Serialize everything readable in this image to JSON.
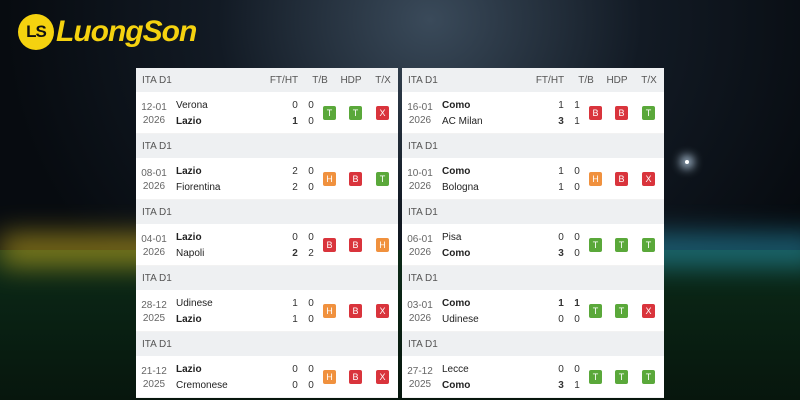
{
  "logo": {
    "text": "LuongSon",
    "badge": "LS"
  },
  "columns": {
    "score": "FT/HT",
    "tb": "T/B",
    "hdp": "HDP",
    "tx": "T/X"
  },
  "colors": {
    "T": "#5aa83a",
    "B": "#d9343c",
    "H": "#f0913e",
    "X": "#d9343c"
  },
  "left": [
    {
      "league": "ITA D1",
      "date1": "12-01",
      "date2": "2026",
      "home": "Verona",
      "away": "Lazio",
      "bold": "away",
      "hft": "0",
      "hht": "0",
      "aft": "1",
      "aht": "0",
      "boldScore": "away",
      "tb": "T",
      "hdp": "T",
      "tx": "X"
    },
    {
      "league": "ITA D1",
      "date1": "08-01",
      "date2": "2026",
      "home": "Lazio",
      "away": "Fiorentina",
      "bold": "home",
      "hft": "2",
      "hht": "0",
      "aft": "2",
      "aht": "0",
      "boldScore": "",
      "tb": "H",
      "hdp": "B",
      "tx": "T"
    },
    {
      "league": "ITA D1",
      "date1": "04-01",
      "date2": "2026",
      "home": "Lazio",
      "away": "Napoli",
      "bold": "home",
      "hft": "0",
      "hht": "0",
      "aft": "2",
      "aht": "2",
      "boldScore": "away",
      "tb": "B",
      "hdp": "B",
      "tx": "H"
    },
    {
      "league": "ITA D1",
      "date1": "28-12",
      "date2": "2025",
      "home": "Udinese",
      "away": "Lazio",
      "bold": "away",
      "hft": "1",
      "hht": "0",
      "aft": "1",
      "aht": "0",
      "boldScore": "",
      "tb": "H",
      "hdp": "B",
      "tx": "X"
    },
    {
      "league": "ITA D1",
      "date1": "21-12",
      "date2": "2025",
      "home": "Lazio",
      "away": "Cremonese",
      "bold": "home",
      "hft": "0",
      "hht": "0",
      "aft": "0",
      "aht": "0",
      "boldScore": "",
      "tb": "H",
      "hdp": "B",
      "tx": "X"
    }
  ],
  "right": [
    {
      "league": "ITA D1",
      "date1": "16-01",
      "date2": "2026",
      "home": "Como",
      "away": "AC Milan",
      "bold": "home",
      "hft": "1",
      "hht": "1",
      "aft": "3",
      "aht": "1",
      "boldScore": "away",
      "tb": "B",
      "hdp": "B",
      "tx": "T"
    },
    {
      "league": "ITA D1",
      "date1": "10-01",
      "date2": "2026",
      "home": "Como",
      "away": "Bologna",
      "bold": "home",
      "hft": "1",
      "hht": "0",
      "aft": "1",
      "aht": "0",
      "boldScore": "",
      "tb": "H",
      "hdp": "B",
      "tx": "X"
    },
    {
      "league": "ITA D1",
      "date1": "06-01",
      "date2": "2026",
      "home": "Pisa",
      "away": "Como",
      "bold": "away",
      "hft": "0",
      "hht": "0",
      "aft": "3",
      "aht": "0",
      "boldScore": "away",
      "tb": "T",
      "hdp": "T",
      "tx": "T"
    },
    {
      "league": "ITA D1",
      "date1": "03-01",
      "date2": "2026",
      "home": "Como",
      "away": "Udinese",
      "bold": "home",
      "hft": "1",
      "hht": "1",
      "aft": "0",
      "aht": "0",
      "boldScore": "home",
      "tb": "T",
      "hdp": "T",
      "tx": "X"
    },
    {
      "league": "ITA D1",
      "date1": "27-12",
      "date2": "2025",
      "home": "Lecce",
      "away": "Como",
      "bold": "away",
      "hft": "0",
      "hht": "0",
      "aft": "3",
      "aht": "1",
      "boldScore": "away",
      "tb": "T",
      "hdp": "T",
      "tx": "T"
    }
  ]
}
